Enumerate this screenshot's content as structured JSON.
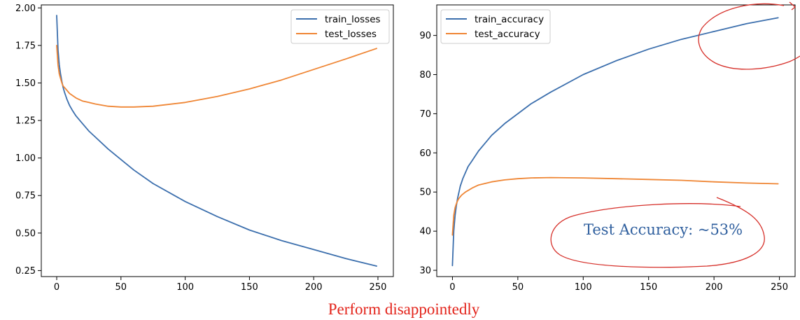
{
  "chart_data": [
    {
      "type": "line",
      "x_range": [
        0,
        250
      ],
      "xticks": [
        0,
        50,
        100,
        150,
        200,
        250
      ],
      "ylim": [
        0.21,
        2.02
      ],
      "yticks": [
        0.25,
        0.5,
        0.75,
        1.0,
        1.25,
        1.5,
        1.75,
        2.0
      ],
      "ytick_labels": [
        "0.25",
        "0.50",
        "0.75",
        "1.00",
        "1.25",
        "1.50",
        "1.75",
        "2.00"
      ],
      "xlim": [
        -12,
        262
      ],
      "legend_position": "top-right",
      "grid": false,
      "series": [
        {
          "name": "train_losses",
          "color": "#3c6fad",
          "x": [
            0,
            1,
            2,
            3,
            4,
            5,
            6,
            8,
            10,
            12,
            15,
            20,
            25,
            30,
            40,
            50,
            60,
            75,
            100,
            125,
            150,
            175,
            200,
            225,
            249
          ],
          "y": [
            1.95,
            1.72,
            1.62,
            1.56,
            1.51,
            1.47,
            1.44,
            1.39,
            1.35,
            1.32,
            1.28,
            1.23,
            1.18,
            1.14,
            1.06,
            0.99,
            0.92,
            0.83,
            0.71,
            0.61,
            0.52,
            0.45,
            0.39,
            0.33,
            0.28
          ]
        },
        {
          "name": "test_losses",
          "color": "#ef8635",
          "x": [
            0,
            1,
            2,
            3,
            4,
            5,
            7,
            10,
            15,
            20,
            25,
            30,
            40,
            50,
            60,
            75,
            100,
            125,
            150,
            175,
            200,
            225,
            249
          ],
          "y": [
            1.75,
            1.62,
            1.56,
            1.53,
            1.5,
            1.48,
            1.46,
            1.43,
            1.4,
            1.38,
            1.37,
            1.36,
            1.345,
            1.34,
            1.34,
            1.345,
            1.37,
            1.41,
            1.46,
            1.52,
            1.59,
            1.66,
            1.73
          ]
        }
      ]
    },
    {
      "type": "line",
      "x_range": [
        0,
        250
      ],
      "xticks": [
        0,
        50,
        100,
        150,
        200,
        250
      ],
      "ylim": [
        28.4,
        97.8
      ],
      "yticks": [
        30,
        40,
        50,
        60,
        70,
        80,
        90
      ],
      "ytick_labels": [
        "30",
        "40",
        "50",
        "60",
        "70",
        "80",
        "90"
      ],
      "xlim": [
        -12,
        262
      ],
      "legend_position": "top-left",
      "grid": false,
      "series": [
        {
          "name": "train_accuracy",
          "color": "#3c6fad",
          "x": [
            0,
            1,
            2,
            3,
            4,
            5,
            6,
            8,
            10,
            12,
            15,
            20,
            25,
            30,
            40,
            50,
            60,
            75,
            100,
            125,
            150,
            175,
            200,
            225,
            249
          ],
          "y": [
            31.2,
            40.0,
            44.0,
            46.5,
            48.5,
            50.0,
            51.5,
            53.5,
            55.0,
            56.5,
            58.0,
            60.5,
            62.5,
            64.5,
            67.5,
            70.0,
            72.5,
            75.5,
            80.0,
            83.5,
            86.5,
            89.0,
            91.0,
            93.0,
            94.5
          ]
        },
        {
          "name": "test_accuracy",
          "color": "#ef8635",
          "x": [
            0,
            1,
            2,
            3,
            4,
            5,
            7,
            10,
            15,
            20,
            30,
            40,
            50,
            60,
            75,
            100,
            125,
            150,
            175,
            200,
            225,
            249
          ],
          "y": [
            39.0,
            44.0,
            46.0,
            47.0,
            47.8,
            48.4,
            49.2,
            50.0,
            51.0,
            51.8,
            52.6,
            53.1,
            53.4,
            53.6,
            53.7,
            53.6,
            53.4,
            53.2,
            53.0,
            52.6,
            52.3,
            52.1
          ]
        }
      ]
    }
  ],
  "annotations": {
    "test_accuracy_note": "Test Accuracy: ~53%",
    "caption": "Perform disappointedly"
  },
  "colors": {
    "annotation_circle": "#d6302a",
    "annotation_text": "#2f5f9e",
    "caption": "#e3241b"
  }
}
